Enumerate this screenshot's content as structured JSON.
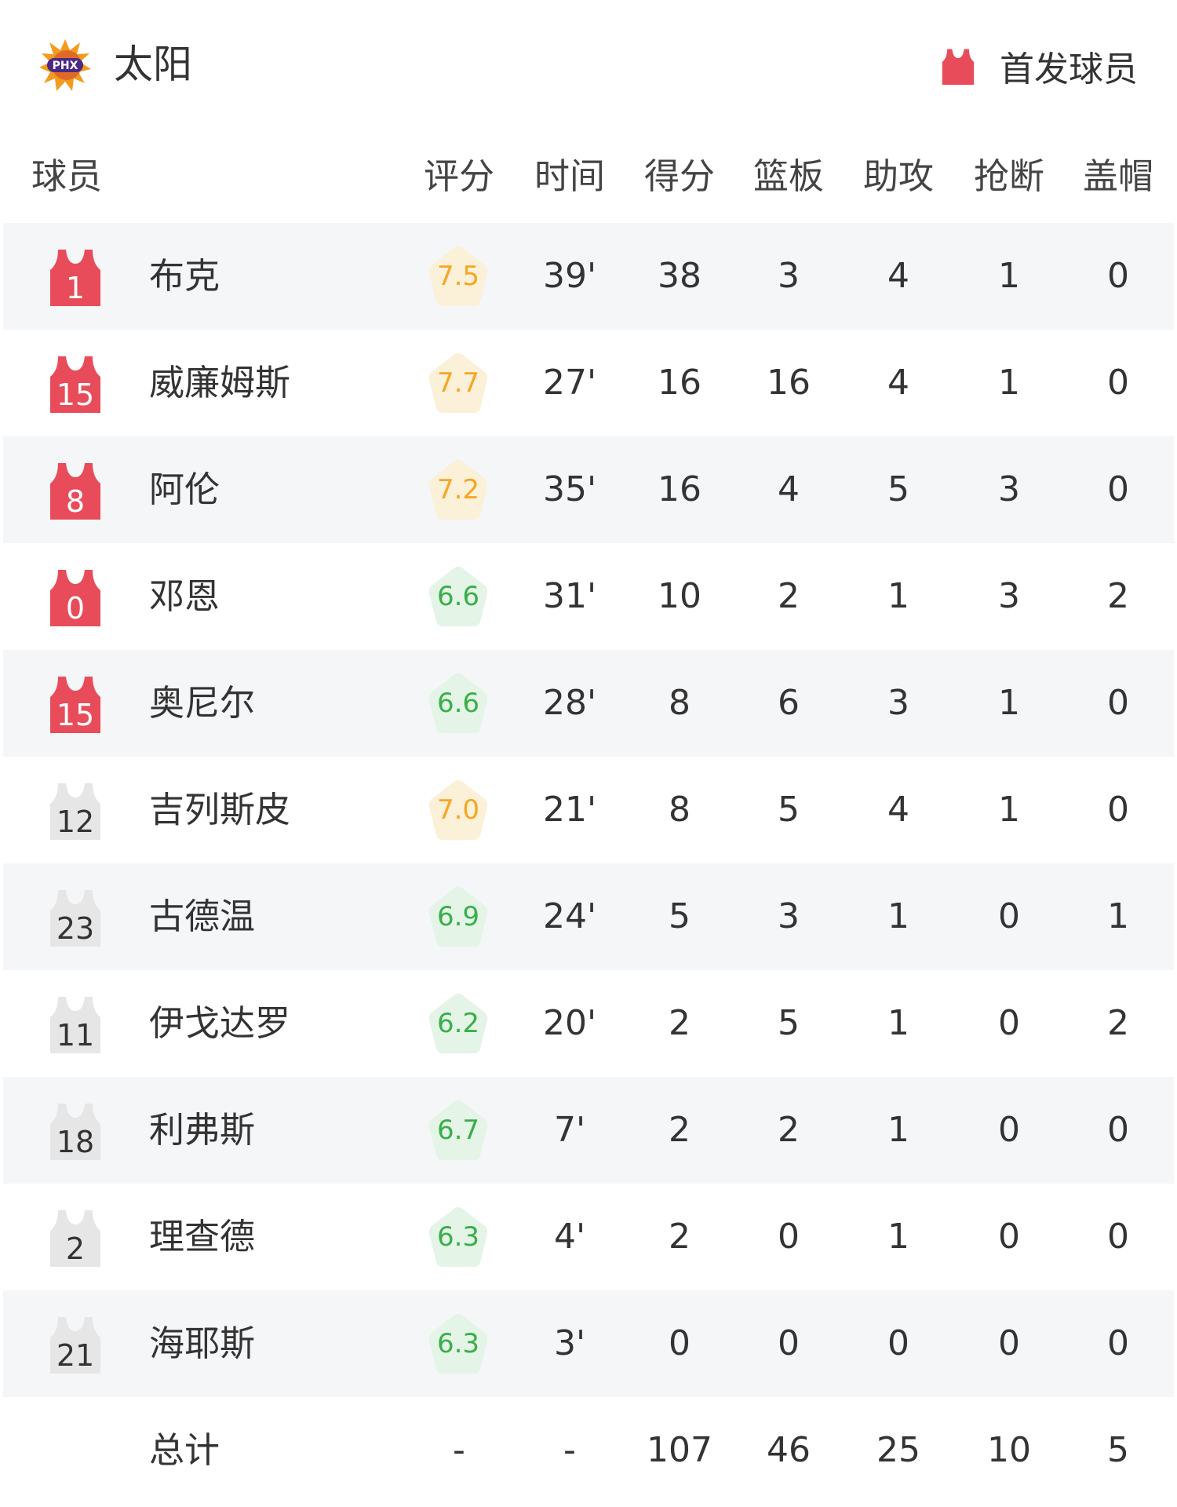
{
  "header": {
    "team": "太阳",
    "team_logo": "PHX",
    "legend_label": "首发球员",
    "legend_icon": "jersey-icon",
    "starter_color": "#e84c5a"
  },
  "columns": [
    "球员",
    "评分",
    "时间",
    "得分",
    "篮板",
    "助攻",
    "抢断",
    "盖帽"
  ],
  "colors": {
    "high_rating_text": "#f5a623",
    "high_rating_bg": "#fbf0d8",
    "low_rating_text": "#3aae4a",
    "low_rating_bg": "#e4f4e6",
    "bench_jersey": "#e6e6e6"
  },
  "players": [
    {
      "number": "1",
      "name": "布克",
      "starter": true,
      "rating": "7.5",
      "time": "39'",
      "pts": "38",
      "reb": "3",
      "ast": "4",
      "stl": "1",
      "blk": "0"
    },
    {
      "number": "15",
      "name": "威廉姆斯",
      "starter": true,
      "rating": "7.7",
      "time": "27'",
      "pts": "16",
      "reb": "16",
      "ast": "4",
      "stl": "1",
      "blk": "0"
    },
    {
      "number": "8",
      "name": "阿伦",
      "starter": true,
      "rating": "7.2",
      "time": "35'",
      "pts": "16",
      "reb": "4",
      "ast": "5",
      "stl": "3",
      "blk": "0"
    },
    {
      "number": "0",
      "name": "邓恩",
      "starter": true,
      "rating": "6.6",
      "time": "31'",
      "pts": "10",
      "reb": "2",
      "ast": "1",
      "stl": "3",
      "blk": "2"
    },
    {
      "number": "15",
      "name": "奥尼尔",
      "starter": true,
      "rating": "6.6",
      "time": "28'",
      "pts": "8",
      "reb": "6",
      "ast": "3",
      "stl": "1",
      "blk": "0"
    },
    {
      "number": "12",
      "name": "吉列斯皮",
      "starter": false,
      "rating": "7.0",
      "time": "21'",
      "pts": "8",
      "reb": "5",
      "ast": "4",
      "stl": "1",
      "blk": "0"
    },
    {
      "number": "23",
      "name": "古德温",
      "starter": false,
      "rating": "6.9",
      "time": "24'",
      "pts": "5",
      "reb": "3",
      "ast": "1",
      "stl": "0",
      "blk": "1"
    },
    {
      "number": "11",
      "name": "伊戈达罗",
      "starter": false,
      "rating": "6.2",
      "time": "20'",
      "pts": "2",
      "reb": "5",
      "ast": "1",
      "stl": "0",
      "blk": "2"
    },
    {
      "number": "18",
      "name": "利弗斯",
      "starter": false,
      "rating": "6.7",
      "time": "7'",
      "pts": "2",
      "reb": "2",
      "ast": "1",
      "stl": "0",
      "blk": "0"
    },
    {
      "number": "2",
      "name": "理查德",
      "starter": false,
      "rating": "6.3",
      "time": "4'",
      "pts": "2",
      "reb": "0",
      "ast": "1",
      "stl": "0",
      "blk": "0"
    },
    {
      "number": "21",
      "name": "海耶斯",
      "starter": false,
      "rating": "6.3",
      "time": "3'",
      "pts": "0",
      "reb": "0",
      "ast": "0",
      "stl": "0",
      "blk": "0"
    }
  ],
  "totals": {
    "label": "总计",
    "rating": "-",
    "time": "-",
    "pts": "107",
    "reb": "46",
    "ast": "25",
    "stl": "10",
    "blk": "5"
  }
}
